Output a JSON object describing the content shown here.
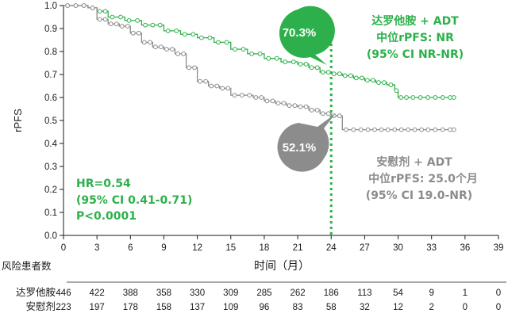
{
  "chart_data": {
    "type": "line",
    "subtype": "kaplan-meier",
    "xlabel": "时间（月）",
    "ylabel": "rPFS",
    "xlim": [
      0,
      39
    ],
    "ylim": [
      0.0,
      1.0
    ],
    "x_ticks": [
      "0",
      "3",
      "6",
      "9",
      "12",
      "15",
      "18",
      "21",
      "24",
      "27",
      "30",
      "33",
      "36",
      "39"
    ],
    "y_ticks": [
      "0.0",
      "0.1",
      "0.2",
      "0.3",
      "0.4",
      "0.5",
      "0.6",
      "0.7",
      "0.8",
      "0.9",
      "1.0"
    ],
    "grid": false,
    "reference_line_x": 24,
    "colors": {
      "treatment": "#2db04b",
      "control": "#8c8c8c",
      "axis": "#1a1a1a"
    },
    "series": [
      {
        "name": "达罗他胺 + ADT",
        "x": [
          0,
          2.2,
          3.0,
          4.0,
          5.5,
          7.0,
          9.0,
          10.5,
          12.0,
          13.5,
          15.0,
          16.5,
          18.0,
          19.5,
          21.0,
          22.0,
          23.0,
          24.0,
          25.0,
          26.0,
          27.0,
          28.0,
          29.0,
          29.7,
          30.0,
          31.0,
          33.0,
          35.0
        ],
        "y": [
          1.0,
          0.99,
          0.975,
          0.95,
          0.935,
          0.915,
          0.89,
          0.875,
          0.86,
          0.84,
          0.81,
          0.79,
          0.77,
          0.755,
          0.745,
          0.73,
          0.71,
          0.703,
          0.695,
          0.685,
          0.675,
          0.665,
          0.655,
          0.63,
          0.6,
          0.6,
          0.6,
          0.6
        ]
      },
      {
        "name": "安慰剂 + ADT",
        "x": [
          0,
          2.2,
          3.0,
          4.0,
          5.0,
          6.0,
          7.0,
          8.0,
          9.0,
          10.0,
          11.0,
          12.0,
          13.0,
          14.0,
          15.0,
          17.0,
          18.0,
          19.0,
          20.0,
          21.0,
          22.0,
          23.0,
          24.0,
          24.5,
          25.0,
          27.0,
          30.0,
          33.0,
          35.0
        ],
        "y": [
          1.0,
          0.99,
          0.94,
          0.92,
          0.91,
          0.88,
          0.84,
          0.82,
          0.81,
          0.79,
          0.73,
          0.67,
          0.65,
          0.64,
          0.61,
          0.6,
          0.585,
          0.575,
          0.565,
          0.56,
          0.545,
          0.53,
          0.521,
          0.52,
          0.46,
          0.46,
          0.46,
          0.46,
          0.46
        ]
      }
    ],
    "callouts": {
      "treatment_pct": "70.3%",
      "control_pct": "52.1%"
    },
    "legend": {
      "treatment": [
        "达罗他胺 + ADT",
        "中位rPFS:  NR",
        "(95% CI NR-NR)"
      ],
      "control": [
        "安慰剂 + ADT",
        "中位rPFS:  25.0个月",
        "(95% CI 19.0-NR)"
      ]
    },
    "stats": [
      "HR=0.54",
      "(95% CI 0.41-0.71)",
      "P<0.0001"
    ],
    "risk_table": {
      "header": "风险患者数",
      "rows": [
        {
          "label": "达罗他胺",
          "values": [
            "446",
            "422",
            "388",
            "358",
            "330",
            "309",
            "285",
            "262",
            "186",
            "113",
            "54",
            "9",
            "1",
            "0"
          ]
        },
        {
          "label": "安慰剂",
          "values": [
            "223",
            "197",
            "178",
            "158",
            "137",
            "109",
            "96",
            "83",
            "58",
            "32",
            "12",
            "2",
            "0",
            "0"
          ]
        }
      ]
    }
  }
}
